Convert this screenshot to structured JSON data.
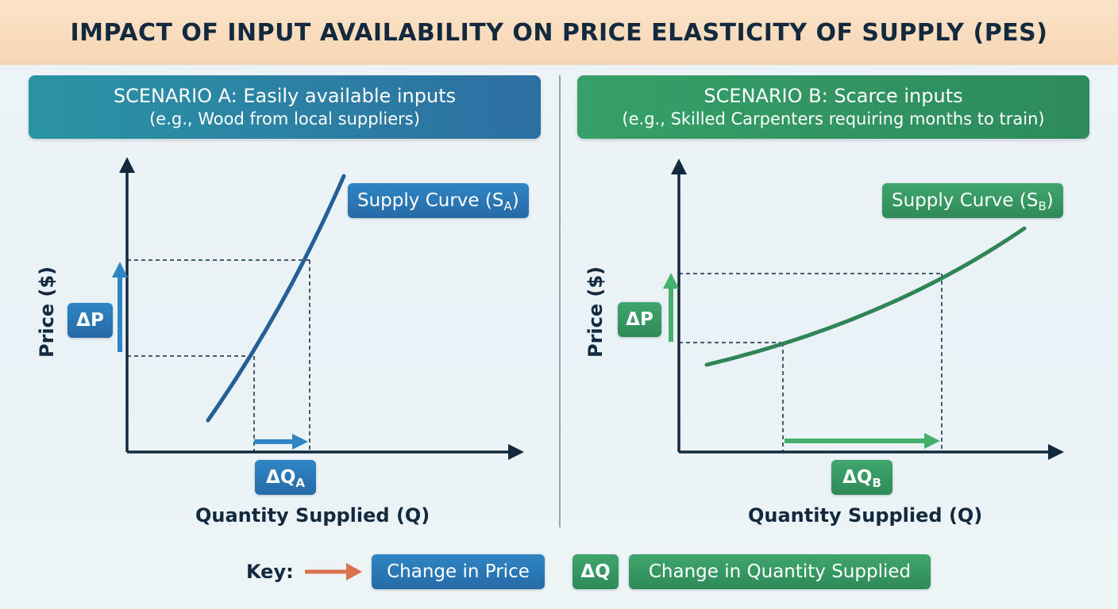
{
  "title": "IMPACT OF INPUT AVAILABILITY ON PRICE ELASTICITY OF SUPPLY (PES)",
  "scenario_a": {
    "heading": "SCENARIO A: Easily available inputs",
    "subheading": "(e.g., Wood from local suppliers)",
    "supply_label": "Supply Curve (S",
    "supply_sub": "A",
    "supply_close": ")",
    "delta_p": "ΔP",
    "delta_q": "ΔQ",
    "delta_q_sub": "A",
    "x_label": "Quantity Supplied (Q)",
    "y_label": "Price ($)"
  },
  "scenario_b": {
    "heading": "SCENARIO B: Scarce inputs",
    "subheading": "(e.g., Skilled Carpenters requiring months to train)",
    "supply_label": "Supply Curve (S",
    "supply_sub": "B",
    "supply_close": ")",
    "delta_p": "ΔP",
    "delta_q": "ΔQ",
    "delta_q_sub": "B",
    "x_label": "Quantity Supplied (Q)",
    "y_label": "Price ($)"
  },
  "key": {
    "label": "Key:",
    "price_label": "Change in Price",
    "delta_q": "ΔQ",
    "quantity_label": "Change in Quantity Supplied"
  },
  "colors": {
    "blue": "#245f96",
    "blue_arrow": "#2f86c4",
    "green": "#2f8458",
    "green_arrow": "#46b06e",
    "key_arrow": "#d9704f",
    "axis": "#13293d"
  }
}
